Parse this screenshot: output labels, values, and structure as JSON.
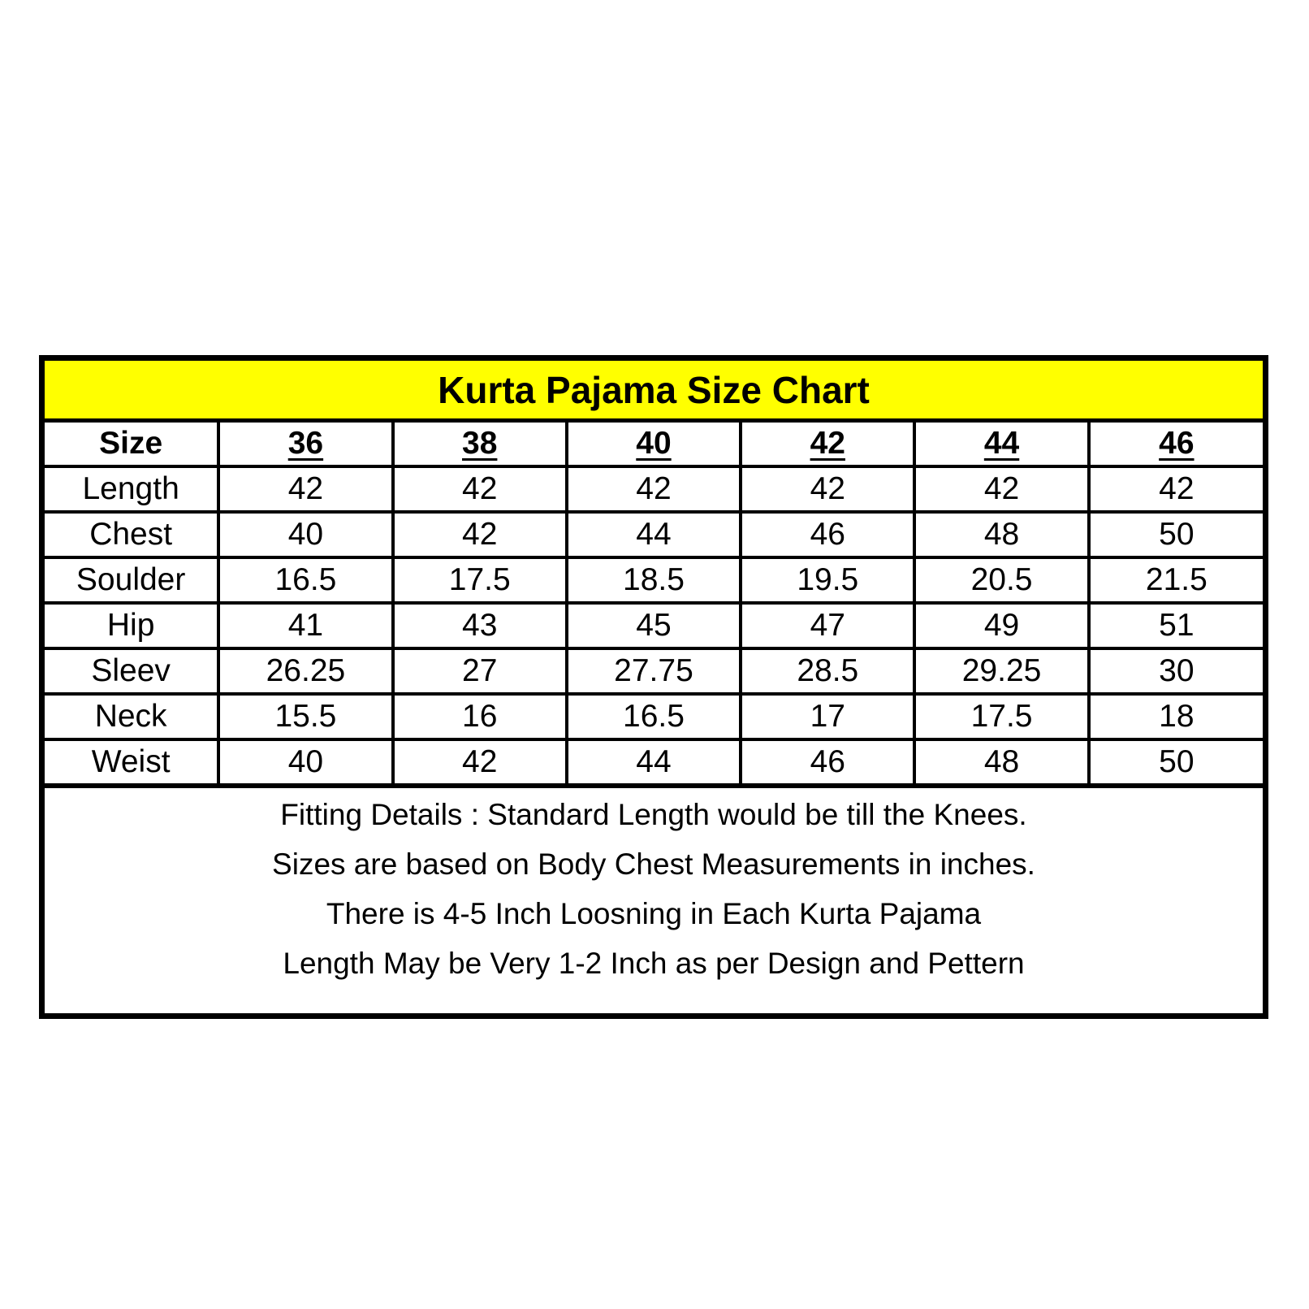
{
  "title": "Kurta Pajama Size Chart",
  "title_bg": "#ffff00",
  "header": [
    "Size",
    "36",
    "38",
    "40",
    "42",
    "44",
    "46"
  ],
  "rows": [
    {
      "label": "Length",
      "values": [
        "42",
        "42",
        "42",
        "42",
        "42",
        "42"
      ]
    },
    {
      "label": "Chest",
      "values": [
        "40",
        "42",
        "44",
        "46",
        "48",
        "50"
      ]
    },
    {
      "label": "Soulder",
      "values": [
        "16.5",
        "17.5",
        "18.5",
        "19.5",
        "20.5",
        "21.5"
      ]
    },
    {
      "label": "Hip",
      "values": [
        "41",
        "43",
        "45",
        "47",
        "49",
        "51"
      ]
    },
    {
      "label": "Sleev",
      "values": [
        "26.25",
        "27",
        "27.75",
        "28.5",
        "29.25",
        "30"
      ]
    },
    {
      "label": "Neck",
      "values": [
        "15.5",
        "16",
        "16.5",
        "17",
        "17.5",
        "18"
      ]
    },
    {
      "label": "Weist",
      "values": [
        "40",
        "42",
        "44",
        "46",
        "48",
        "50"
      ]
    }
  ],
  "notes": [
    "Fitting Details : Standard Length would be till the Knees.",
    "Sizes are based on Body Chest Measurements in inches.",
    "There is 4-5 Inch Loosning in Each Kurta Pajama",
    "Length May be Very 1-2 Inch as per Design and Pettern"
  ]
}
